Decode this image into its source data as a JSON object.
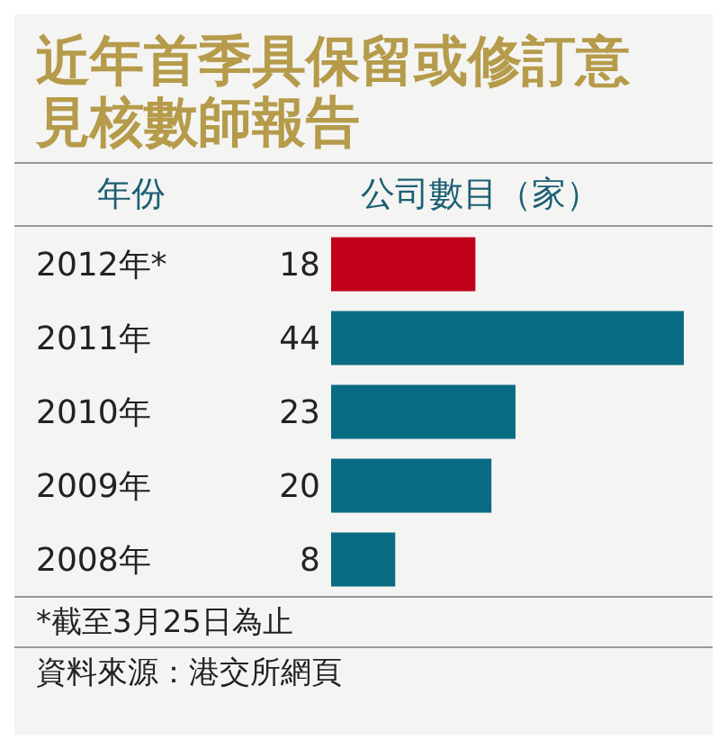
{
  "chart_data": {
    "type": "bar",
    "orientation": "horizontal",
    "title": "近年首季具保留或修訂意見核數師報告",
    "ylabel": "年份",
    "xlabel": "公司數目（家）",
    "categories": [
      "2012年*",
      "2011年",
      "2010年",
      "2009年",
      "2008年"
    ],
    "values": [
      18,
      44,
      23,
      20,
      8
    ],
    "colors": [
      "#c0001a",
      "#0a6b84",
      "#0a6b84",
      "#0a6b84",
      "#0a6b84"
    ],
    "data_labels": true,
    "annotations": [
      "*截至3月25日為止",
      "資料來源：港交所網頁"
    ]
  }
}
